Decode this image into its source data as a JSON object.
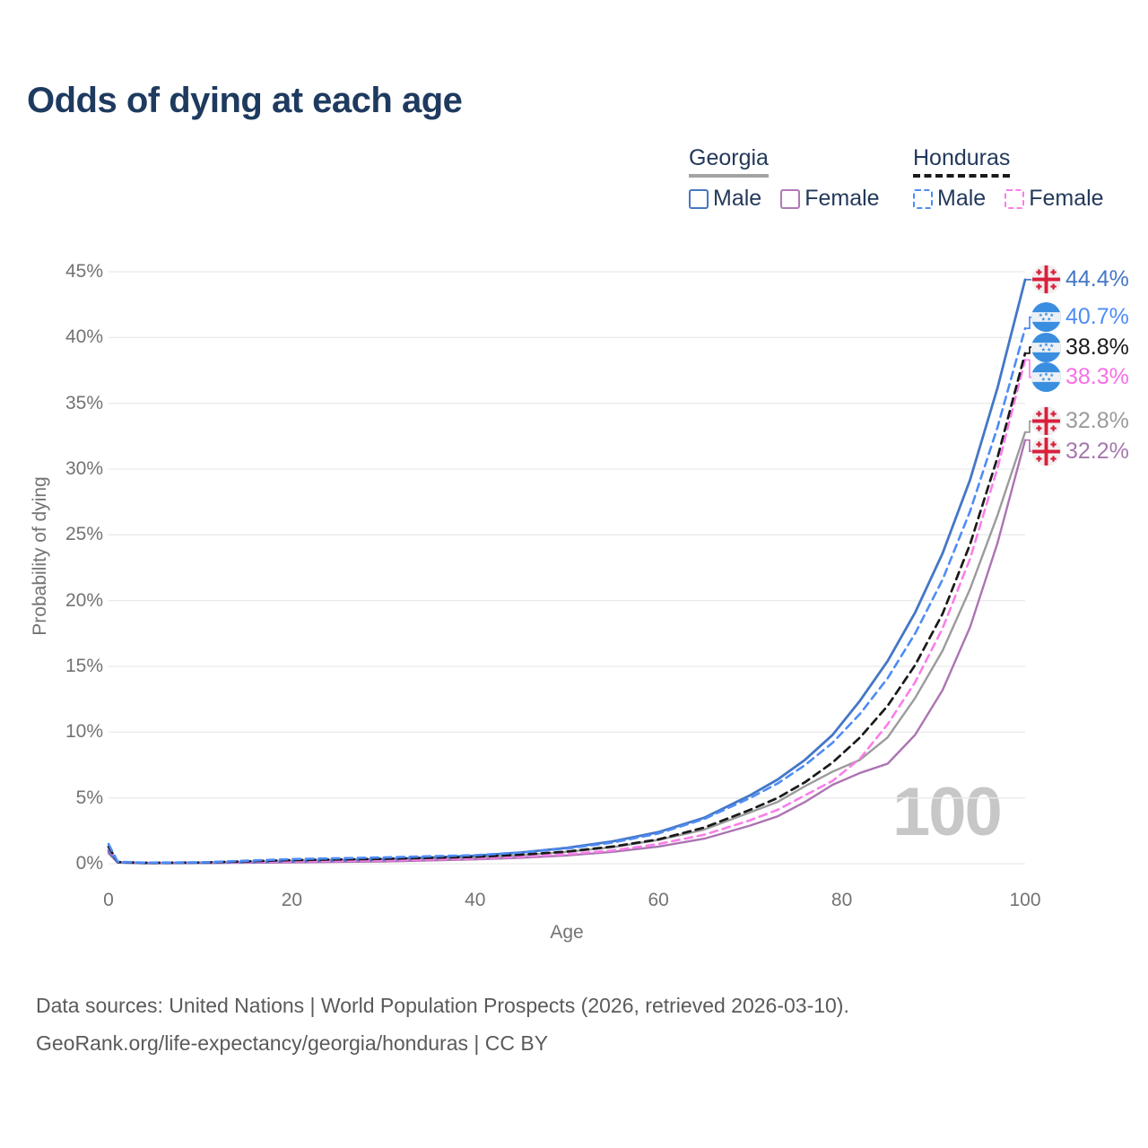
{
  "page": {
    "title": "Odds of dying at each age",
    "footer_line1": "Data sources: United Nations | World Population Prospects (2026, retrieved 2026-03-10).",
    "footer_line2": "GeoRank.org/life-expectancy/georgia/honduras | CC BY"
  },
  "legend": {
    "groups": [
      {
        "name": "Georgia",
        "line_style": "solid",
        "underline_color": "#a3a3a3",
        "items": [
          {
            "label": "Male",
            "color": "#4577c5",
            "style": "solid"
          },
          {
            "label": "Female",
            "color": "#b278b8",
            "style": "solid"
          }
        ]
      },
      {
        "name": "Honduras",
        "line_style": "dashed",
        "underline_color": "#1a1a1a",
        "items": [
          {
            "label": "Male",
            "color": "#4e8cf5",
            "style": "dashed"
          },
          {
            "label": "Female",
            "color": "#fa7ee9",
            "style": "dashed"
          }
        ]
      }
    ]
  },
  "chart_data": {
    "type": "line",
    "title": "Odds of dying at each age",
    "xlabel": "Age",
    "ylabel": "Probability of dying",
    "xlim": [
      0,
      100
    ],
    "ylim": [
      0,
      45
    ],
    "x_ticks": [
      0,
      20,
      40,
      60,
      80,
      100
    ],
    "y_ticks_percent": [
      0,
      5,
      10,
      15,
      20,
      25,
      30,
      35,
      40,
      45
    ],
    "grid": "horizontal",
    "hover_age_indicator": "100",
    "legend_position": "top-right",
    "ages": [
      0,
      1,
      4,
      10,
      20,
      30,
      40,
      45,
      50,
      55,
      60,
      65,
      70,
      73,
      76,
      79,
      82,
      85,
      88,
      91,
      94,
      97,
      100
    ],
    "series": [
      {
        "name": "Georgia Both sexes",
        "country": "Georgia",
        "sex": "both",
        "color": "#9b9b9b",
        "dash": "solid",
        "width": 2.4,
        "end_value": 32.8,
        "end_label": "32.8%",
        "end_label_color": "#9b9b9b",
        "flag": "georgia",
        "values": [
          0.9,
          0.09,
          0.05,
          0.06,
          0.14,
          0.25,
          0.46,
          0.63,
          0.9,
          1.25,
          1.8,
          2.6,
          3.9,
          4.7,
          5.9,
          7.0,
          7.9,
          9.6,
          12.6,
          16.2,
          20.9,
          26.5,
          32.8
        ]
      },
      {
        "name": "Georgia Female",
        "country": "Georgia",
        "sex": "female",
        "color": "#ac74b2",
        "dash": "solid",
        "width": 2.4,
        "end_value": 32.2,
        "end_label": "32.2%",
        "end_label_color": "#a678ae",
        "flag": "georgia",
        "values": [
          0.8,
          0.08,
          0.04,
          0.05,
          0.1,
          0.17,
          0.33,
          0.45,
          0.63,
          0.9,
          1.3,
          1.9,
          2.9,
          3.6,
          4.7,
          6.0,
          6.9,
          7.6,
          9.8,
          13.2,
          18.0,
          24.4,
          32.2
        ]
      },
      {
        "name": "Georgia Male",
        "country": "Georgia",
        "sex": "male",
        "color": "#4577c5",
        "dash": "solid",
        "width": 2.8,
        "end_value": 44.4,
        "end_label": "44.4%",
        "end_label_color": "#4577c5",
        "flag": "georgia",
        "values": [
          1.0,
          0.1,
          0.05,
          0.06,
          0.18,
          0.33,
          0.6,
          0.85,
          1.2,
          1.7,
          2.4,
          3.5,
          5.2,
          6.4,
          7.9,
          9.8,
          12.4,
          15.4,
          19.1,
          23.6,
          29.2,
          36.2,
          44.4
        ]
      },
      {
        "name": "Honduras Female",
        "country": "Honduras",
        "sex": "female",
        "color": "#fa7ee9",
        "dash": "dashed",
        "width": 2.6,
        "end_value": 38.3,
        "end_label": "38.3%",
        "end_label_color": "#f870e4",
        "flag": "honduras",
        "values": [
          1.2,
          0.12,
          0.06,
          0.08,
          0.18,
          0.25,
          0.4,
          0.53,
          0.72,
          1.0,
          1.5,
          2.2,
          3.3,
          4.1,
          5.2,
          6.3,
          8.0,
          10.6,
          13.8,
          17.9,
          23.2,
          30.1,
          38.3
        ]
      },
      {
        "name": "Honduras Both sexes",
        "country": "Honduras",
        "sex": "both",
        "color": "#1a1a1a",
        "dash": "dashed",
        "width": 2.7,
        "end_value": 38.8,
        "end_label": "38.8%",
        "end_label_color": "#1a1a1a",
        "flag": "honduras",
        "values": [
          1.3,
          0.13,
          0.07,
          0.09,
          0.27,
          0.37,
          0.52,
          0.68,
          0.92,
          1.3,
          1.85,
          2.75,
          4.1,
          5.0,
          6.2,
          7.7,
          9.6,
          12.0,
          15.1,
          19.0,
          24.3,
          30.9,
          38.8
        ]
      },
      {
        "name": "Honduras Male",
        "country": "Honduras",
        "sex": "male",
        "color": "#4e8cf5",
        "dash": "dashed",
        "width": 2.6,
        "end_value": 40.7,
        "end_label": "40.7%",
        "end_label_color": "#4e8cf5",
        "flag": "honduras",
        "values": [
          1.5,
          0.15,
          0.08,
          0.1,
          0.35,
          0.48,
          0.65,
          0.85,
          1.15,
          1.6,
          2.3,
          3.4,
          5.0,
          6.1,
          7.5,
          9.2,
          11.4,
          14.1,
          17.5,
          21.6,
          26.8,
          33.2,
          40.7
        ]
      }
    ],
    "flag_colors": {
      "georgia_bg": "#f0f0f0",
      "georgia_red": "#d8203c",
      "honduras_blue": "#3a8ee0",
      "honduras_band": "#eef1f4"
    }
  }
}
